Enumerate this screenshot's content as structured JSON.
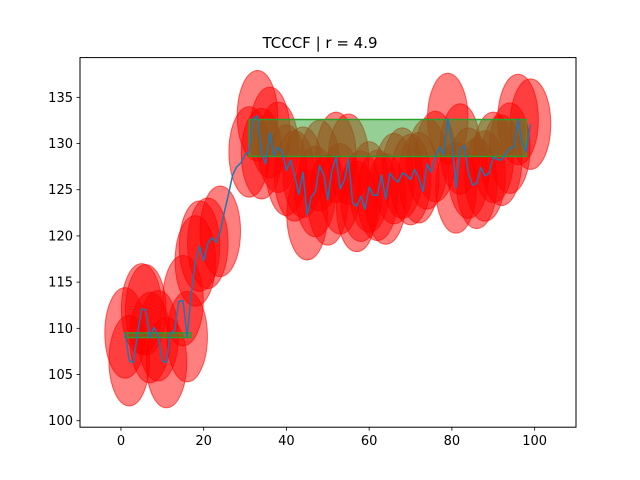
{
  "chart_data": {
    "type": "line",
    "title": "TCCCF | r = 4.9",
    "xlabel": "",
    "ylabel": "",
    "xlim": [
      -9.9,
      110
    ],
    "ylim": [
      99.3,
      139.3
    ],
    "xticks": [
      0,
      20,
      40,
      60,
      80,
      100
    ],
    "yticks": [
      100,
      105,
      110,
      115,
      120,
      125,
      130,
      135
    ],
    "grid": false,
    "series": [
      {
        "x": [
          1,
          2,
          3,
          4,
          5,
          6,
          7,
          8,
          9,
          10,
          11,
          12,
          13,
          14,
          15,
          16,
          17,
          18,
          19,
          20,
          21,
          22,
          23,
          24,
          25,
          26,
          27,
          28,
          29,
          30,
          31,
          32,
          33,
          34,
          35,
          36,
          37,
          38,
          39,
          40,
          41,
          42,
          43,
          44,
          45,
          46,
          47,
          48,
          49,
          50,
          51,
          52,
          53,
          54,
          55,
          56,
          57,
          58,
          59,
          60,
          61,
          62,
          63,
          64,
          65,
          66,
          67,
          68,
          69,
          70,
          71,
          72,
          73,
          74,
          75,
          76,
          77,
          78,
          79,
          80,
          81,
          82,
          83,
          84,
          85,
          86,
          87,
          88,
          89,
          90,
          91,
          92,
          93,
          94,
          95,
          96,
          97,
          98,
          99
        ],
        "y": [
          109.5,
          106.5,
          106.3,
          109.4,
          112.1,
          112.0,
          109.0,
          110.1,
          109.2,
          106.5,
          106.3,
          109.5,
          109.8,
          112.9,
          113.0,
          109.1,
          113.7,
          117.3,
          118.9,
          117.3,
          119.2,
          119.8,
          119.3,
          120.5,
          122.6,
          124.5,
          126.6,
          127.5,
          127.9,
          128.8,
          129.1,
          132.7,
          133.0,
          128.9,
          127.8,
          131.2,
          128.7,
          129.6,
          129.1,
          127.1,
          128.2,
          126.5,
          124.5,
          126.9,
          122.3,
          124.2,
          124.8,
          127.6,
          126.7,
          123.9,
          127.1,
          128.5,
          125.1,
          126.0,
          128.3,
          123.6,
          123.2,
          124.3,
          122.9,
          125.3,
          124.4,
          124.4,
          126.6,
          124.0,
          126.8,
          126.2,
          125.8,
          126.8,
          126.6,
          126.1,
          127.2,
          126.3,
          124.8,
          127.8,
          126.9,
          128.6,
          129.6,
          128.8,
          132.7,
          130.3,
          125.2,
          129.4,
          129.8,
          126.8,
          125.5,
          125.7,
          127.4,
          126.5,
          126.8,
          128.5,
          128.3,
          128.2,
          128.9,
          129.5,
          129.6,
          132.6,
          130.0,
          129.1,
          132.1
        ],
        "color": "#1f77b4"
      }
    ],
    "circles": {
      "color": "#ff0000",
      "radius": 4.9,
      "centers": [
        [
          1,
          109.5
        ],
        [
          2,
          106.5
        ],
        [
          5,
          112.1
        ],
        [
          6,
          112.0
        ],
        [
          7,
          109.0
        ],
        [
          9,
          109.2
        ],
        [
          11,
          106.3
        ],
        [
          15,
          113.0
        ],
        [
          16,
          109.1
        ],
        [
          18,
          117.3
        ],
        [
          19,
          118.9
        ],
        [
          21,
          119.2
        ],
        [
          24,
          120.5
        ],
        [
          31,
          129.1
        ],
        [
          33,
          133.0
        ],
        [
          34,
          128.9
        ],
        [
          36,
          131.2
        ],
        [
          38,
          129.6
        ],
        [
          40,
          127.1
        ],
        [
          42,
          126.5
        ],
        [
          44,
          126.9
        ],
        [
          45,
          122.3
        ],
        [
          47,
          124.8
        ],
        [
          48,
          127.6
        ],
        [
          50,
          123.9
        ],
        [
          52,
          128.5
        ],
        [
          53,
          125.1
        ],
        [
          55,
          128.3
        ],
        [
          57,
          123.2
        ],
        [
          58,
          124.3
        ],
        [
          60,
          125.3
        ],
        [
          62,
          124.4
        ],
        [
          64,
          124.0
        ],
        [
          66,
          126.2
        ],
        [
          68,
          126.8
        ],
        [
          70,
          126.1
        ],
        [
          72,
          126.3
        ],
        [
          74,
          127.8
        ],
        [
          76,
          128.6
        ],
        [
          79,
          132.7
        ],
        [
          81,
          125.2
        ],
        [
          82,
          129.4
        ],
        [
          84,
          126.8
        ],
        [
          86,
          125.7
        ],
        [
          88,
          126.5
        ],
        [
          90,
          128.5
        ],
        [
          92,
          128.2
        ],
        [
          94,
          129.5
        ],
        [
          96,
          132.6
        ],
        [
          99,
          132.1
        ]
      ]
    },
    "bands": [
      {
        "x0": 1,
        "x1": 17,
        "y0": 109.0,
        "y1": 109.5,
        "color": "#2ca02c"
      },
      {
        "x0": 31,
        "x1": 98,
        "y0": 128.6,
        "y1": 132.6,
        "color": "#2ca02c"
      }
    ]
  }
}
